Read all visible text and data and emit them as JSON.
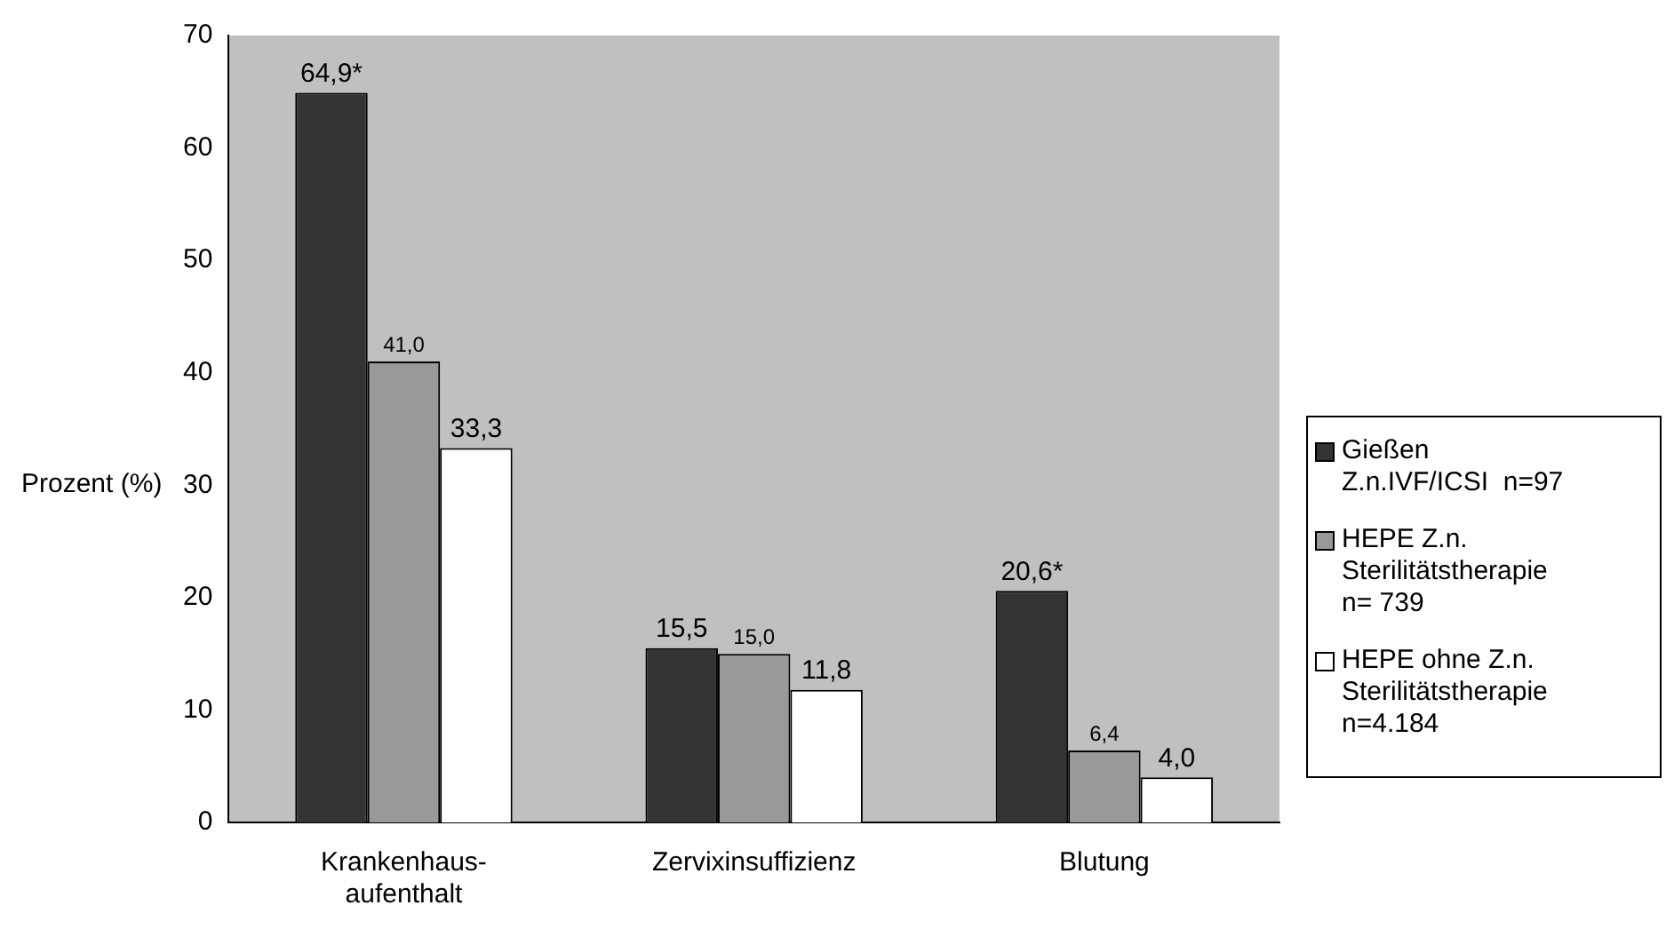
{
  "chart_data": {
    "type": "bar",
    "ylabel": "Prozent (%)",
    "categories": [
      "Krankenhaus-\naufenthalt",
      "Zervixinsuffizienz",
      "Blutung"
    ],
    "series": [
      {
        "name": "Gießen\nZ.n.IVF/ICSI  n=97",
        "color": "#333333",
        "values": [
          64.9,
          15.5,
          20.6
        ],
        "value_labels": [
          "64,9*",
          "15,5",
          "20,6*"
        ]
      },
      {
        "name": "HEPE Z.n.\nSterilitätstherapie\nn= 739",
        "color": "#999999",
        "values": [
          41.0,
          15.0,
          6.4
        ],
        "value_labels": [
          "41,0",
          "15,0",
          "6,4"
        ]
      },
      {
        "name": "HEPE ohne Z.n.\nSterilitätstherapie\nn=4.184",
        "color": "#ffffff",
        "values": [
          33.3,
          11.8,
          4.0
        ],
        "value_labels": [
          "33,3",
          "11,8",
          "4,0"
        ]
      }
    ],
    "ylim": [
      0,
      70
    ],
    "yticks": [
      0,
      10,
      20,
      30,
      40,
      50,
      60,
      70
    ],
    "grid": false,
    "legend": "right"
  }
}
